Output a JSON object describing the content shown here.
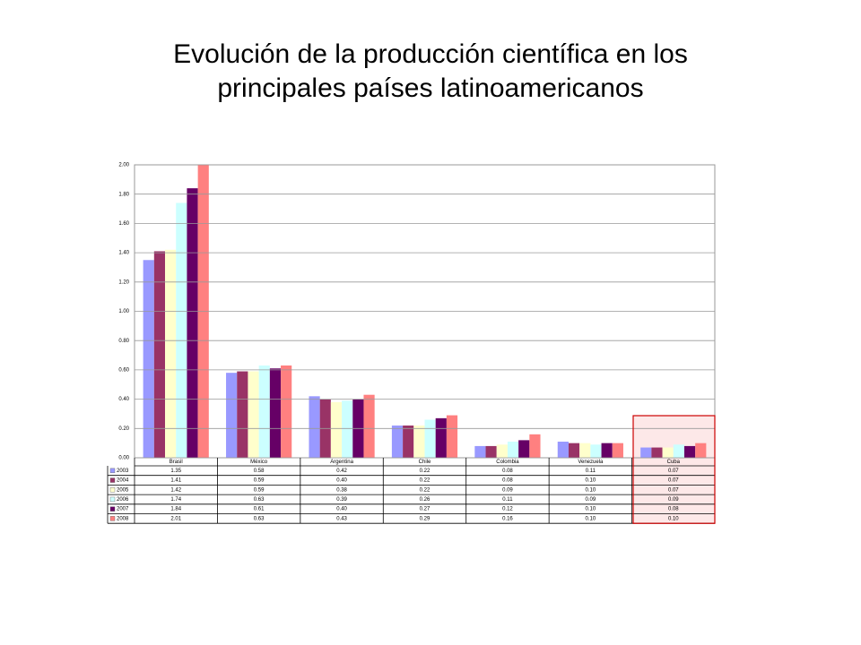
{
  "chart_data": {
    "type": "bar",
    "title": "Evolución de la producción científica en los principales países latinoamericanos",
    "categories": [
      "Brasil",
      "México",
      "Argentina",
      "Chile",
      "Colombia",
      "Venezuela",
      "Cuba"
    ],
    "series": [
      {
        "name": "2003",
        "color": "#9999ff",
        "values": [
          1.35,
          0.58,
          0.42,
          0.22,
          0.08,
          0.11,
          0.07
        ],
        "value_labels": [
          "1.35",
          "0.58",
          "0.42",
          "0.22",
          "0.08",
          "0.11",
          "0.07"
        ]
      },
      {
        "name": "2004",
        "color": "#993366",
        "values": [
          1.41,
          0.59,
          0.4,
          0.22,
          0.08,
          0.1,
          0.07
        ],
        "value_labels": [
          "1.41",
          "0.59",
          "0.40",
          "0.22",
          "0.08",
          "0.10",
          "0.07"
        ]
      },
      {
        "name": "2005",
        "color": "#ffffcc",
        "values": [
          1.42,
          0.59,
          0.38,
          0.22,
          0.09,
          0.1,
          0.07
        ],
        "value_labels": [
          "1.42",
          "0.59",
          "0.38",
          "0.22",
          "0.09",
          "0.10",
          "0.07"
        ]
      },
      {
        "name": "2006",
        "color": "#ccffff",
        "values": [
          1.74,
          0.63,
          0.39,
          0.26,
          0.11,
          0.09,
          0.09
        ],
        "value_labels": [
          "1.74",
          "0.63",
          "0.39",
          "0.26",
          "0.11",
          "0.09",
          "0.09"
        ]
      },
      {
        "name": "2007",
        "color": "#660066",
        "values": [
          1.84,
          0.61,
          0.4,
          0.27,
          0.12,
          0.1,
          0.08
        ],
        "value_labels": [
          "1.84",
          "0.61",
          "0.40",
          "0.27",
          "0.12",
          "0.10",
          "0.08"
        ]
      },
      {
        "name": "2008",
        "color": "#ff8080",
        "values": [
          2.01,
          0.63,
          0.43,
          0.29,
          0.16,
          0.1,
          0.1
        ],
        "value_labels": [
          "2.01",
          "0.63",
          "0.43",
          "0.29",
          "0.16",
          "0.10",
          "0.10"
        ]
      }
    ],
    "ylim": [
      0,
      2
    ],
    "yticks": [
      {
        "value": 0,
        "label": "0.00"
      },
      {
        "value": 0.2,
        "label": "0.20"
      },
      {
        "value": 0.4,
        "label": "0.40"
      },
      {
        "value": 0.6,
        "label": "0.60"
      },
      {
        "value": 0.8,
        "label": "0.80"
      },
      {
        "value": 1,
        "label": "1.00"
      },
      {
        "value": 1.2,
        "label": "1.20"
      },
      {
        "value": 1.4,
        "label": "1.40"
      },
      {
        "value": 1.6,
        "label": "1.60"
      },
      {
        "value": 1.8,
        "label": "1.80"
      },
      {
        "value": 2,
        "label": "2.00"
      }
    ],
    "grid": true
  }
}
